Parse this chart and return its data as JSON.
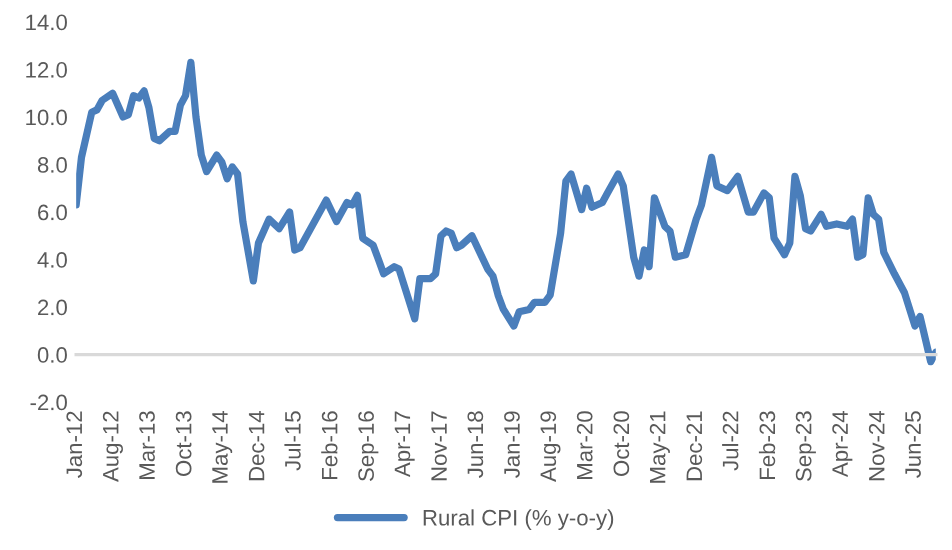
{
  "chart_data": {
    "type": "line",
    "legend": "bottom",
    "grid": false,
    "marker": "none",
    "line_style": "solid",
    "x": [
      "2012-01",
      "2012-02",
      "2012-04",
      "2012-05",
      "2012-06",
      "2012-08",
      "2012-10",
      "2012-11",
      "2012-12",
      "2013-01",
      "2013-02",
      "2013-03",
      "2013-04",
      "2013-05",
      "2013-07",
      "2013-08",
      "2013-09",
      "2013-10",
      "2013-11",
      "2013-12",
      "2014-01",
      "2014-02",
      "2014-04",
      "2014-05",
      "2014-06",
      "2014-07",
      "2014-08",
      "2014-09",
      "2014-11",
      "2014-12",
      "2015-02",
      "2015-04",
      "2015-06",
      "2015-07",
      "2015-08",
      "2016-01",
      "2016-03",
      "2016-05",
      "2016-06",
      "2016-07",
      "2016-08",
      "2016-10",
      "2016-11",
      "2016-12",
      "2017-02",
      "2017-03",
      "2017-06",
      "2017-07",
      "2017-09",
      "2017-10",
      "2017-11",
      "2017-12",
      "2018-01",
      "2018-02",
      "2018-03",
      "2018-05",
      "2018-08",
      "2018-09",
      "2018-10",
      "2018-11",
      "2019-01",
      "2019-02",
      "2019-04",
      "2019-05",
      "2019-07",
      "2019-08",
      "2019-10",
      "2019-11",
      "2019-12",
      "2020-02",
      "2020-03",
      "2020-04",
      "2020-06",
      "2020-07",
      "2020-09",
      "2020-10",
      "2020-12",
      "2021-01",
      "2021-02",
      "2021-03",
      "2021-04",
      "2021-06",
      "2021-07",
      "2021-08",
      "2021-10",
      "2021-12",
      "2022-01",
      "2022-03",
      "2022-04",
      "2022-06",
      "2022-08",
      "2022-10",
      "2022-11",
      "2023-01",
      "2023-02",
      "2023-03",
      "2023-05",
      "2023-06",
      "2023-07",
      "2023-08",
      "2023-09",
      "2023-10",
      "2023-12",
      "2024-01",
      "2024-03",
      "2024-05",
      "2024-06",
      "2024-07",
      "2024-08",
      "2024-09",
      "2024-10",
      "2024-11",
      "2024-12",
      "2025-02",
      "2025-04",
      "2025-06",
      "2025-07",
      "2025-09",
      "2025-10"
    ],
    "series": [
      {
        "name": "Rural CPI (% y-o-y)",
        "color": "#4a7ebb",
        "values": [
          6.3,
          8.3,
          10.2,
          10.3,
          10.7,
          11.0,
          10.0,
          10.1,
          10.9,
          10.8,
          11.1,
          10.4,
          9.1,
          9.0,
          9.4,
          9.4,
          10.5,
          10.9,
          12.3,
          10.0,
          8.4,
          7.7,
          8.4,
          8.1,
          7.4,
          7.9,
          7.6,
          5.6,
          3.1,
          4.7,
          5.7,
          5.3,
          6.0,
          4.4,
          4.5,
          6.5,
          5.6,
          6.4,
          6.3,
          6.7,
          4.9,
          4.6,
          4.0,
          3.4,
          3.7,
          3.6,
          1.5,
          3.2,
          3.2,
          3.4,
          5.0,
          5.2,
          5.1,
          4.5,
          4.6,
          5.0,
          3.6,
          3.3,
          2.5,
          1.9,
          1.2,
          1.8,
          1.9,
          2.2,
          2.2,
          2.5,
          5.1,
          7.3,
          7.6,
          6.1,
          7.0,
          6.2,
          6.4,
          6.8,
          7.6,
          7.1,
          4.1,
          3.3,
          4.4,
          3.7,
          6.6,
          5.4,
          5.2,
          4.1,
          4.2,
          5.7,
          6.3,
          8.3,
          7.1,
          6.9,
          7.5,
          6.0,
          6.0,
          6.8,
          6.6,
          4.9,
          4.2,
          4.7,
          7.5,
          6.7,
          5.3,
          5.2,
          5.9,
          5.4,
          5.5,
          5.4,
          5.7,
          4.1,
          4.2,
          6.6,
          5.9,
          5.7,
          4.3,
          3.4,
          2.6,
          1.2,
          1.6,
          -0.3,
          0.1
        ]
      }
    ],
    "xlim": [
      "2012-01",
      "2025-10"
    ],
    "xticks": [
      {
        "value": "2012-01",
        "label": "Jan-12"
      },
      {
        "value": "2012-08",
        "label": "Aug-12"
      },
      {
        "value": "2013-03",
        "label": "Mar-13"
      },
      {
        "value": "2013-10",
        "label": "Oct-13"
      },
      {
        "value": "2014-05",
        "label": "May-14"
      },
      {
        "value": "2014-12",
        "label": "Dec-14"
      },
      {
        "value": "2015-07",
        "label": "Jul-15"
      },
      {
        "value": "2016-02",
        "label": "Feb-16"
      },
      {
        "value": "2016-09",
        "label": "Sep-16"
      },
      {
        "value": "2017-04",
        "label": "Apr-17"
      },
      {
        "value": "2017-11",
        "label": "Nov-17"
      },
      {
        "value": "2018-06",
        "label": "Jun-18"
      },
      {
        "value": "2019-01",
        "label": "Jan-19"
      },
      {
        "value": "2019-08",
        "label": "Aug-19"
      },
      {
        "value": "2020-03",
        "label": "Mar-20"
      },
      {
        "value": "2020-10",
        "label": "Oct-20"
      },
      {
        "value": "2021-05",
        "label": "May-21"
      },
      {
        "value": "2021-12",
        "label": "Dec-21"
      },
      {
        "value": "2022-07",
        "label": "Jul-22"
      },
      {
        "value": "2023-02",
        "label": "Feb-23"
      },
      {
        "value": "2023-09",
        "label": "Sep-23"
      },
      {
        "value": "2024-04",
        "label": "Apr-24"
      },
      {
        "value": "2024-11",
        "label": "Nov-24"
      },
      {
        "value": "2025-06",
        "label": "Jun-25"
      }
    ],
    "ylim": [
      -2,
      14
    ],
    "yticks": [
      {
        "value": -2,
        "label": "-2.0"
      },
      {
        "value": 0,
        "label": "0.0"
      },
      {
        "value": 2,
        "label": "2.0"
      },
      {
        "value": 4,
        "label": "4.0"
      },
      {
        "value": 6,
        "label": "6.0"
      },
      {
        "value": 8,
        "label": "8.0"
      },
      {
        "value": 10,
        "label": "10.0"
      },
      {
        "value": 12,
        "label": "12.0"
      },
      {
        "value": 14,
        "label": "14.0"
      }
    ]
  }
}
